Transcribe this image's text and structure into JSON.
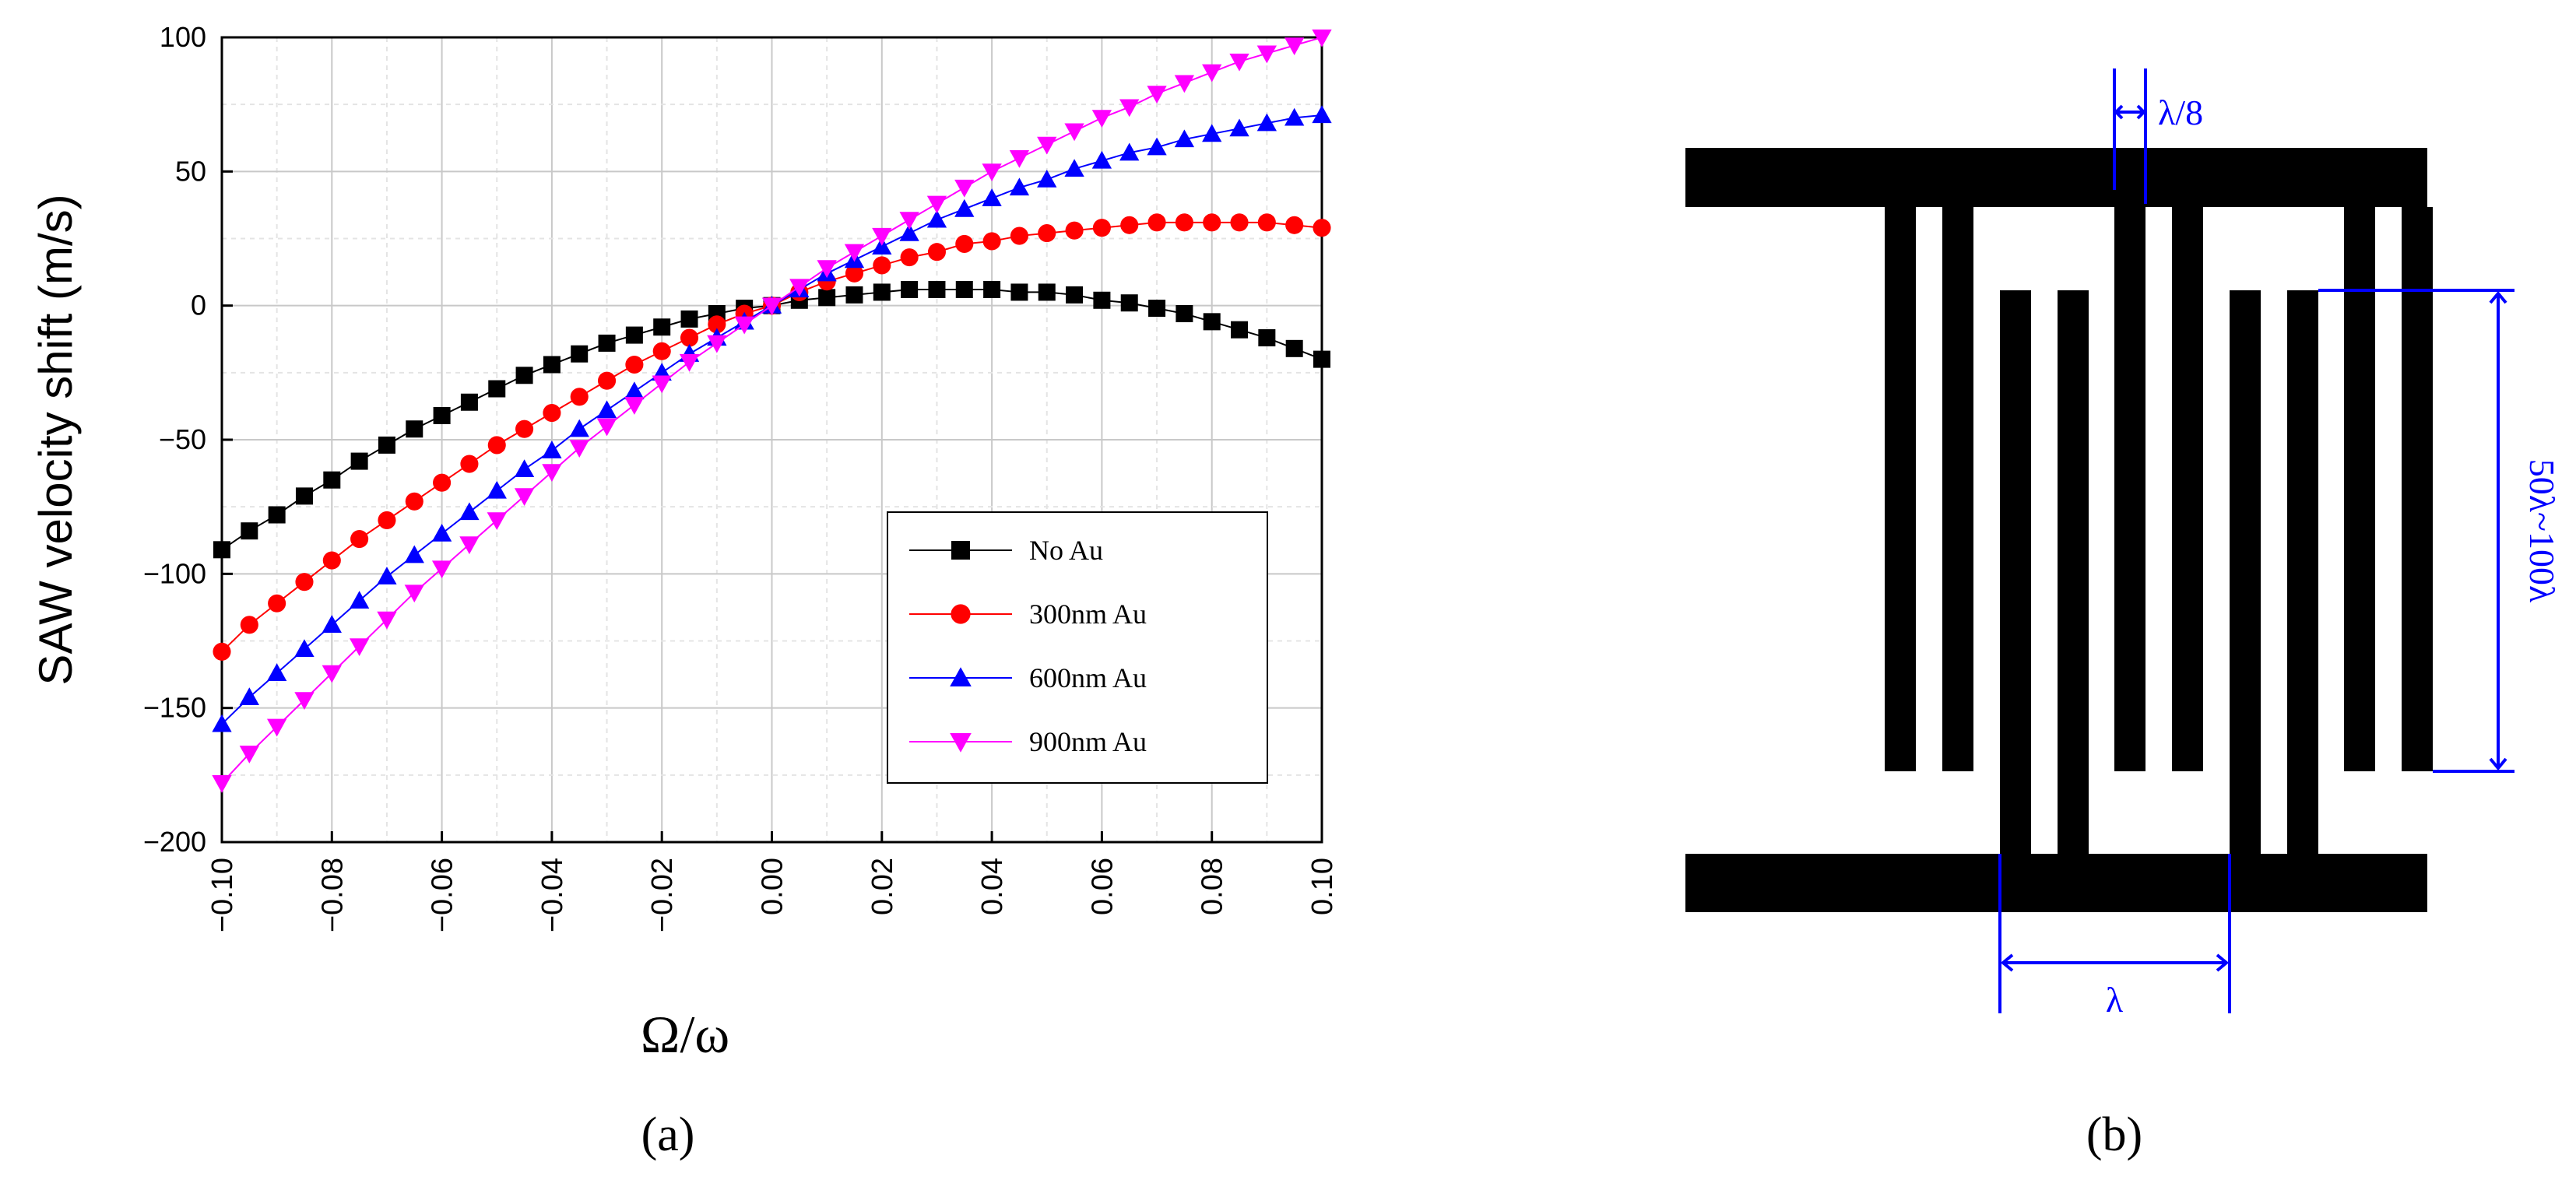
{
  "chart_data": {
    "type": "line",
    "title": "",
    "xlabel": "Ω/ω",
    "ylabel": "SAW velocity shift (m/s)",
    "xlim": [
      -0.1,
      0.1
    ],
    "ylim": [
      -200,
      100
    ],
    "x_ticks": [
      "−0.10",
      "−0.08",
      "−0.06",
      "−0.04",
      "−0.02",
      "0.00",
      "0.02",
      "0.04",
      "0.06",
      "0.08",
      "0.10"
    ],
    "y_ticks": [
      "100",
      "50",
      "0",
      "−50",
      "−100",
      "−150",
      "−200"
    ],
    "grid": true,
    "legend_position": "bottom-right",
    "x": [
      -0.1,
      -0.095,
      -0.09,
      -0.085,
      -0.08,
      -0.075,
      -0.07,
      -0.065,
      -0.06,
      -0.055,
      -0.05,
      -0.045,
      -0.04,
      -0.035,
      -0.03,
      -0.025,
      -0.02,
      -0.015,
      -0.01,
      -0.005,
      0.0,
      0.005,
      0.01,
      0.015,
      0.02,
      0.025,
      0.03,
      0.035,
      0.04,
      0.045,
      0.05,
      0.055,
      0.06,
      0.065,
      0.07,
      0.075,
      0.08,
      0.085,
      0.09,
      0.095,
      0.1
    ],
    "series": [
      {
        "name": "No Au",
        "color": "#000000",
        "marker": "square",
        "values": [
          -91,
          -84,
          -78,
          -71,
          -65,
          -58,
          -52,
          -46,
          -41,
          -36,
          -31,
          -26,
          -22,
          -18,
          -14,
          -11,
          -8,
          -5,
          -3,
          -1,
          0,
          2,
          3,
          4,
          5,
          6,
          6,
          6,
          6,
          5,
          5,
          4,
          2,
          1,
          -1,
          -3,
          -6,
          -9,
          -12,
          -16,
          -20
        ]
      },
      {
        "name": "300nm Au",
        "color": "#ff0000",
        "marker": "circle",
        "values": [
          -129,
          -119,
          -111,
          -103,
          -95,
          -87,
          -80,
          -73,
          -66,
          -59,
          -52,
          -46,
          -40,
          -34,
          -28,
          -22,
          -17,
          -12,
          -7,
          -3,
          0,
          5,
          9,
          12,
          15,
          18,
          20,
          23,
          24,
          26,
          27,
          28,
          29,
          30,
          31,
          31,
          31,
          31,
          31,
          30,
          29
        ]
      },
      {
        "name": "600nm Au",
        "color": "#0000ff",
        "marker": "triangle-up",
        "values": [
          -156,
          -146,
          -137,
          -128,
          -119,
          -110,
          -101,
          -93,
          -85,
          -77,
          -69,
          -61,
          -54,
          -46,
          -39,
          -32,
          -25,
          -18,
          -12,
          -6,
          0,
          6,
          12,
          17,
          22,
          27,
          32,
          36,
          40,
          44,
          47,
          51,
          54,
          57,
          59,
          62,
          64,
          66,
          68,
          70,
          71
        ]
      },
      {
        "name": "900nm Au",
        "color": "#ff00ff",
        "marker": "triangle-down",
        "values": [
          -178,
          -167,
          -157,
          -147,
          -137,
          -127,
          -117,
          -107,
          -98,
          -89,
          -80,
          -71,
          -62,
          -53,
          -45,
          -37,
          -29,
          -21,
          -14,
          -7,
          0,
          7,
          14,
          20,
          26,
          32,
          38,
          44,
          50,
          55,
          60,
          65,
          70,
          74,
          79,
          83,
          87,
          91,
          94,
          97,
          100
        ]
      }
    ]
  },
  "captions": {
    "a": "(a)",
    "b": "(b)"
  },
  "idt_diagram": {
    "finger_width_label": "λ/8",
    "period_label": "λ",
    "aperture_label": "50λ~100λ",
    "dimension_color": "#0000ff",
    "electrode_color": "#000000"
  }
}
